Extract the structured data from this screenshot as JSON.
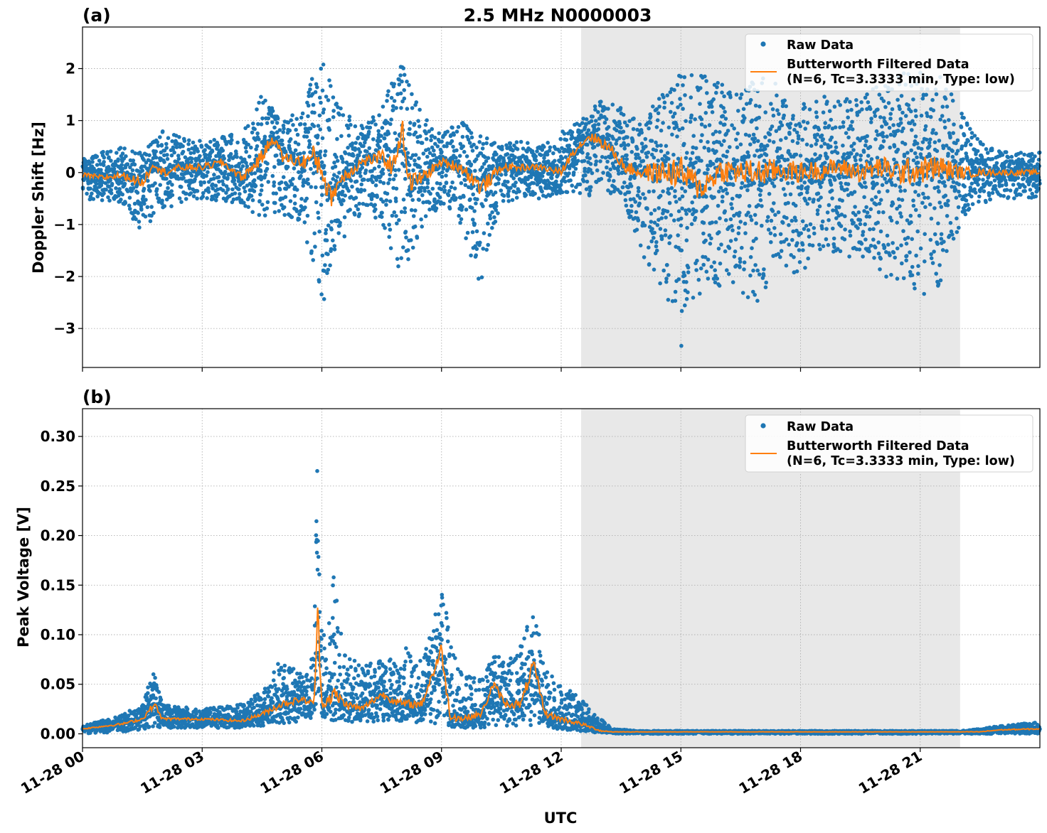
{
  "title": "2.5 MHz N0000003",
  "colors": {
    "raw": "#1f77b4",
    "filtered": "#ff7f0e",
    "shade": "#e8e8e8"
  },
  "shaded_region": {
    "start_hours": 12.5,
    "end_hours": 22.0
  },
  "x_axis": {
    "label": "UTC",
    "range_hours": [
      0,
      24
    ],
    "tick_hours": [
      0,
      3,
      6,
      9,
      12,
      15,
      18,
      21
    ],
    "tick_labels": [
      "11-28 00",
      "11-28 03",
      "11-28 06",
      "11-28 09",
      "11-28 12",
      "11-28 15",
      "11-28 18",
      "11-28 21"
    ]
  },
  "legend": {
    "raw_label": "Raw Data",
    "filtered_label_line1": "Butterworth Filtered Data",
    "filtered_label_line2": "(N=6, Tc=3.3333 min, Type: low)",
    "placement": "top-right"
  },
  "chart_data": [
    {
      "type": "scatter",
      "panel": "(a)",
      "title": "2.5 MHz N0000003",
      "xlabel": "",
      "ylabel": "Doppler Shift [Hz]",
      "ylim": [
        -3.75,
        2.8
      ],
      "yticks": [
        2,
        1,
        0,
        -1,
        -2,
        -3
      ],
      "ytick_labels": [
        "2",
        "1",
        "0",
        "−1",
        "−2",
        "−3"
      ],
      "grid": true,
      "series": [
        {
          "name": "Raw Data",
          "kind": "scatter",
          "envelope": {
            "x_hours": [
              0,
              1,
              1.5,
              2,
              3,
              4,
              4.5,
              5,
              5.5,
              6,
              6.3,
              7,
              7.5,
              8,
              8.5,
              9,
              9.5,
              10,
              10.5,
              11,
              11.5,
              12,
              12.5,
              13,
              13.5,
              14,
              14.5,
              15,
              15.5,
              16,
              16.5,
              17,
              17.5,
              18,
              18.5,
              19,
              19.5,
              20,
              20.5,
              21,
              21.5,
              22,
              22.5,
              23,
              24
            ],
            "upper": [
              0.3,
              0.5,
              0.4,
              0.8,
              0.6,
              0.8,
              1.5,
              1.0,
              1.2,
              2.5,
              1.5,
              0.9,
              1.2,
              2.3,
              1.1,
              0.8,
              1.0,
              0.7,
              0.6,
              0.6,
              0.5,
              0.8,
              1.0,
              1.4,
              1.3,
              1.0,
              1.5,
              1.9,
              2.0,
              1.7,
              1.6,
              1.9,
              1.8,
              1.4,
              1.5,
              1.4,
              1.5,
              1.7,
              1.9,
              2.0,
              1.9,
              1.2,
              0.6,
              0.4,
              0.4
            ],
            "lower": [
              -0.5,
              -0.6,
              -1.2,
              -0.7,
              -0.5,
              -0.6,
              -0.9,
              -0.8,
              -1.0,
              -2.7,
              -1.5,
              -0.8,
              -1.0,
              -2.0,
              -1.1,
              -0.6,
              -1.0,
              -2.3,
              -0.6,
              -0.5,
              -0.5,
              -0.4,
              -0.4,
              -0.5,
              -0.4,
              -1.5,
              -2.4,
              -3.4,
              -2.3,
              -2.2,
              -2.5,
              -2.6,
              -1.8,
              -2.0,
              -1.6,
              -1.6,
              -1.7,
              -2.0,
              -2.2,
              -2.4,
              -2.2,
              -1.0,
              -0.6,
              -0.5,
              -0.5
            ]
          }
        },
        {
          "name": "Butterworth Filtered Data\n(N=6, Tc=3.3333 min, Type: low)",
          "kind": "line",
          "x_hours": [
            0,
            0.5,
            1,
            1.5,
            1.8,
            2,
            2.5,
            3,
            3.5,
            4,
            4.5,
            4.8,
            5,
            5.5,
            5.8,
            6,
            6.2,
            6.5,
            7,
            7.5,
            7.8,
            8,
            8.2,
            8.5,
            9,
            9.5,
            10,
            10.5,
            11,
            11.5,
            12,
            12.3,
            12.7,
            13,
            13.3,
            13.6,
            14,
            14.5,
            15,
            15.5,
            16,
            16.5,
            17,
            17.5,
            18,
            18.5,
            19,
            19.5,
            20,
            20.5,
            21,
            21.5,
            22,
            22.5,
            23,
            24
          ],
          "y": [
            -0.05,
            -0.1,
            -0.05,
            -0.2,
            0.2,
            0.0,
            0.1,
            0.1,
            0.2,
            -0.1,
            0.3,
            0.7,
            0.3,
            0.2,
            0.3,
            0.1,
            -0.5,
            -0.1,
            0.2,
            0.3,
            0.1,
            0.9,
            -0.2,
            -0.1,
            0.2,
            0.1,
            -0.3,
            0.1,
            0.1,
            0.1,
            0.0,
            0.4,
            0.7,
            0.6,
            0.4,
            0.1,
            0.0,
            0.0,
            0.0,
            -0.3,
            0.05,
            0.0,
            0.0,
            0.05,
            0.0,
            0.05,
            0.1,
            0.0,
            0.1,
            0.0,
            0.05,
            0.1,
            0.0,
            0.0,
            0.0,
            0.0
          ]
        }
      ]
    },
    {
      "type": "scatter",
      "panel": "(b)",
      "title": "",
      "xlabel": "UTC",
      "ylabel": "Peak Voltage [V]",
      "ylim": [
        -0.014,
        0.328
      ],
      "yticks": [
        0.3,
        0.25,
        0.2,
        0.15,
        0.1,
        0.05,
        0.0
      ],
      "ytick_labels": [
        "0.30",
        "0.25",
        "0.20",
        "0.15",
        "0.10",
        "0.05",
        "0.00"
      ],
      "grid": true,
      "series": [
        {
          "name": "Raw Data",
          "kind": "scatter",
          "envelope": {
            "x_hours": [
              0,
              1,
              1.5,
              1.8,
              2,
              3,
              4,
              4.5,
              5,
              5.5,
              5.8,
              5.9,
              6,
              6.3,
              6.6,
              7,
              7.5,
              8,
              8.5,
              9,
              9.5,
              10,
              10.3,
              10.6,
              11,
              11.3,
              11.6,
              12,
              12.5,
              13,
              13.3,
              14,
              15,
              18,
              21,
              22,
              22.5,
              23,
              23.5,
              24
            ],
            "upper": [
              0.008,
              0.02,
              0.03,
              0.068,
              0.03,
              0.025,
              0.03,
              0.045,
              0.078,
              0.06,
              0.08,
              0.312,
              0.09,
              0.16,
              0.08,
              0.07,
              0.075,
              0.09,
              0.075,
              0.142,
              0.06,
              0.055,
              0.085,
              0.07,
              0.09,
              0.142,
              0.065,
              0.05,
              0.035,
              0.015,
              0.005,
              0.003,
              0.003,
              0.003,
              0.003,
              0.003,
              0.005,
              0.008,
              0.01,
              0.012
            ],
            "lower": [
              0.0,
              0.002,
              0.004,
              0.006,
              0.006,
              0.006,
              0.006,
              0.008,
              0.01,
              0.012,
              0.015,
              0.015,
              0.014,
              0.012,
              0.012,
              0.012,
              0.012,
              0.012,
              0.01,
              0.008,
              0.006,
              0.006,
              0.008,
              0.008,
              0.008,
              0.008,
              0.006,
              0.004,
              0.002,
              0.001,
              0.0,
              0.0,
              0.0,
              0.0,
              0.0,
              0.0,
              0.0,
              0.0,
              0.0,
              0.0
            ]
          }
        },
        {
          "name": "Butterworth Filtered Data\n(N=6, Tc=3.3333 min, Type: low)",
          "kind": "line",
          "x_hours": [
            0,
            1,
            1.5,
            1.8,
            2,
            3,
            4,
            4.5,
            5,
            5.5,
            5.8,
            5.9,
            6,
            6.3,
            6.6,
            7,
            7.5,
            8,
            8.5,
            9,
            9.2,
            9.5,
            10,
            10.3,
            10.6,
            11,
            11.3,
            11.6,
            12,
            12.5,
            13,
            13.3,
            14,
            15,
            18,
            21,
            22,
            22.5,
            23,
            24
          ],
          "y": [
            0.005,
            0.01,
            0.015,
            0.03,
            0.015,
            0.015,
            0.013,
            0.02,
            0.03,
            0.035,
            0.03,
            0.12,
            0.03,
            0.04,
            0.03,
            0.025,
            0.04,
            0.03,
            0.03,
            0.085,
            0.02,
            0.015,
            0.02,
            0.05,
            0.03,
            0.03,
            0.07,
            0.02,
            0.015,
            0.01,
            0.003,
            0.002,
            0.002,
            0.002,
            0.002,
            0.002,
            0.002,
            0.002,
            0.004,
            0.005
          ]
        }
      ]
    }
  ]
}
